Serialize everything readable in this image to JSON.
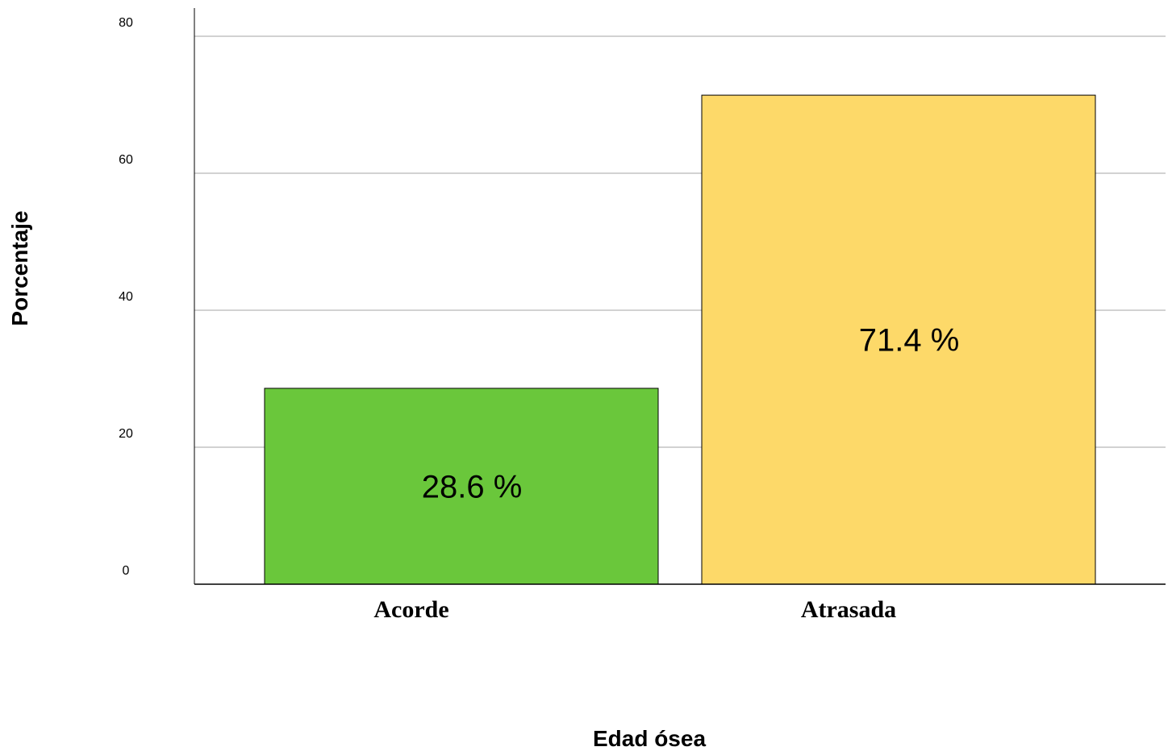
{
  "chart_data": {
    "type": "bar",
    "xlabel": "Edad ósea",
    "ylabel": "Porcentaje",
    "categories": [
      "Acorde",
      "Atrasada"
    ],
    "values": [
      28.6,
      71.4
    ],
    "data_labels": [
      "28.6 %",
      "71.4 %"
    ],
    "colors": [
      "#6ac73b",
      "#fdd969"
    ],
    "ylim": [
      0,
      80
    ],
    "yticks": [
      0,
      20,
      40,
      60,
      80
    ],
    "grid": true,
    "legend": "none"
  }
}
